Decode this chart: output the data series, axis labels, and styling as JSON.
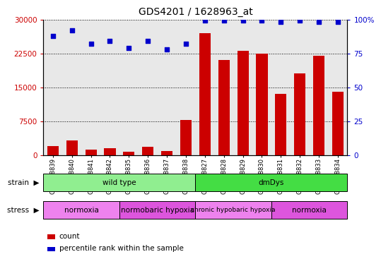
{
  "title": "GDS4201 / 1628963_at",
  "samples": [
    "GSM398839",
    "GSM398840",
    "GSM398841",
    "GSM398842",
    "GSM398835",
    "GSM398836",
    "GSM398837",
    "GSM398838",
    "GSM398827",
    "GSM398828",
    "GSM398829",
    "GSM398830",
    "GSM398831",
    "GSM398832",
    "GSM398833",
    "GSM398834"
  ],
  "counts": [
    2000,
    3200,
    1100,
    1500,
    700,
    1800,
    900,
    7800,
    27000,
    21000,
    23000,
    22500,
    13500,
    18000,
    22000,
    14000
  ],
  "percentile_ranks": [
    88,
    92,
    82,
    84,
    79,
    84,
    78,
    82,
    99,
    99,
    99,
    99,
    98,
    99,
    98,
    98
  ],
  "ylim_left": [
    0,
    30000
  ],
  "ylim_right": [
    0,
    100
  ],
  "yticks_left": [
    0,
    7500,
    15000,
    22500,
    30000
  ],
  "yticks_right": [
    0,
    25,
    50,
    75,
    100
  ],
  "bar_color": "#cc0000",
  "dot_color": "#0000cc",
  "strain_labels": [
    {
      "label": "wild type",
      "start": 0,
      "end": 8,
      "color": "#90ee90"
    },
    {
      "label": "dmDys",
      "start": 8,
      "end": 16,
      "color": "#44dd44"
    }
  ],
  "stress_labels": [
    {
      "label": "normoxia",
      "start": 0,
      "end": 4,
      "color": "#ee82ee"
    },
    {
      "label": "normobaric hypoxia",
      "start": 4,
      "end": 8,
      "color": "#dd55dd"
    },
    {
      "label": "chronic hypobaric hypoxia",
      "start": 8,
      "end": 12,
      "color": "#ee82ee"
    },
    {
      "label": "normoxia",
      "start": 12,
      "end": 16,
      "color": "#dd55dd"
    }
  ],
  "legend_count_label": "count",
  "legend_pct_label": "percentile rank within the sample",
  "plot_bgcolor": "#e8e8e8",
  "fig_bgcolor": "#ffffff",
  "left_label_color": "#cc0000",
  "right_label_color": "#0000cc"
}
